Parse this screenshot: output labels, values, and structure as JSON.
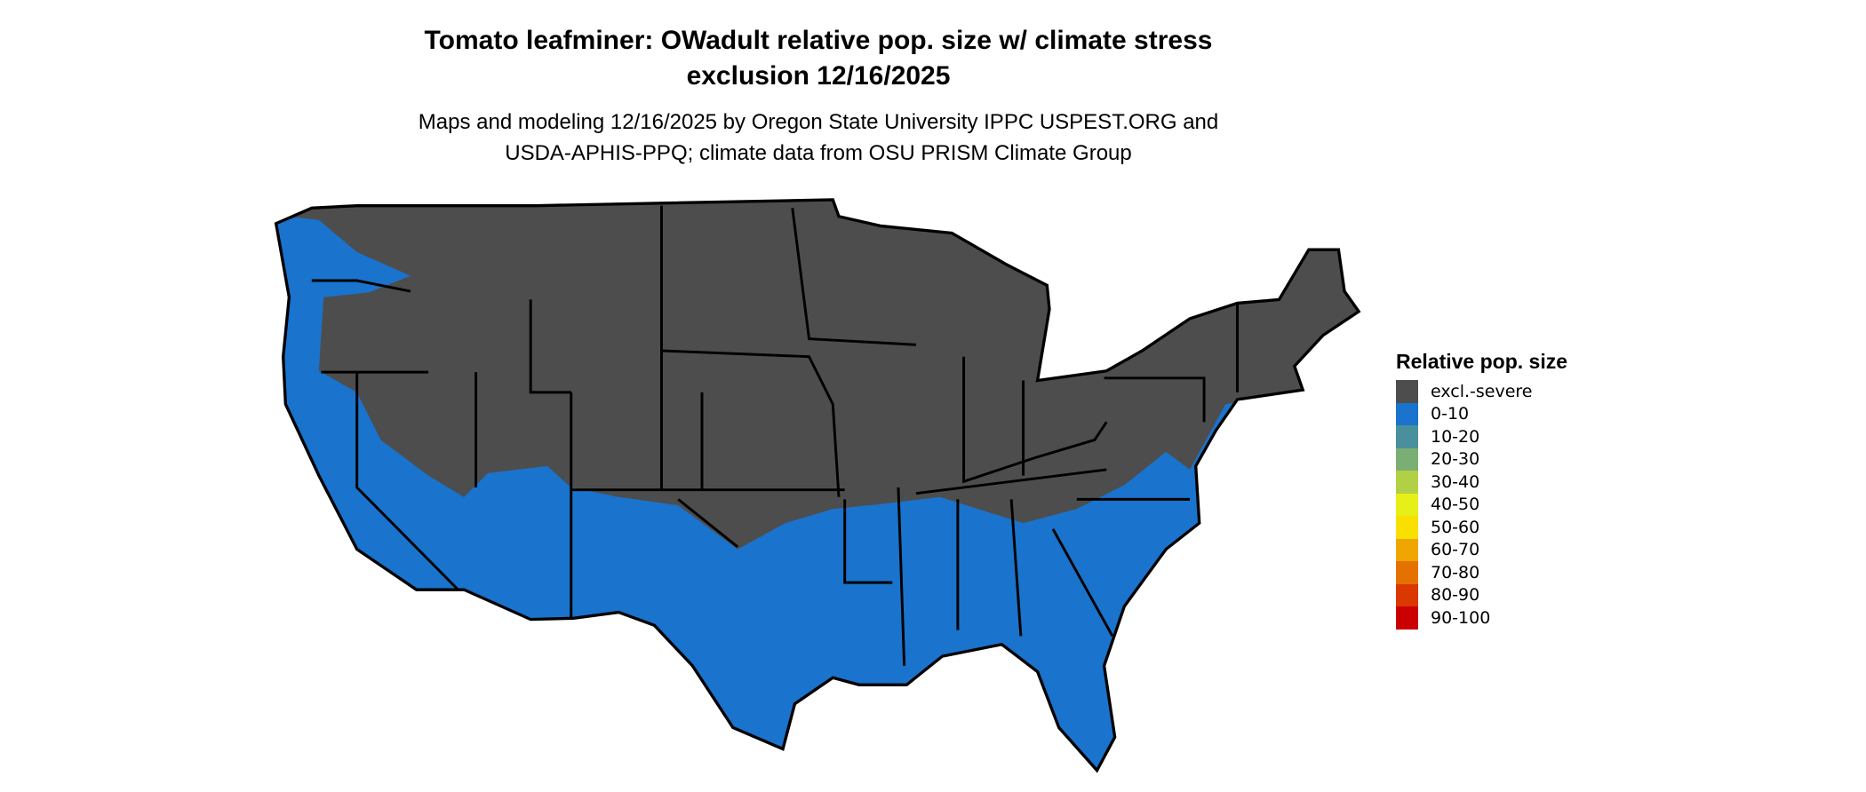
{
  "title_line1": "Tomato leafminer: OWadult relative pop. size w/ climate stress",
  "title_line2": "exclusion 12/16/2025",
  "subtitle_line1": "Maps and modeling 12/16/2025 by Oregon State University IPPC USPEST.ORG and",
  "subtitle_line2": "USDA-APHIS-PPQ; climate data from OSU PRISM Climate Group",
  "map": {
    "region": "Contiguous United States",
    "boundaries": "states"
  },
  "legend": {
    "title": "Relative pop. size",
    "items": [
      {
        "label": "excl.-severe",
        "color": "#4d4d4d"
      },
      {
        "label": "0-10",
        "color": "#1a73cc"
      },
      {
        "label": "10-20",
        "color": "#4a8f9c"
      },
      {
        "label": "20-30",
        "color": "#7bae72"
      },
      {
        "label": "30-40",
        "color": "#b2d046"
      },
      {
        "label": "40-50",
        "color": "#e6ef17"
      },
      {
        "label": "50-60",
        "color": "#f9e000"
      },
      {
        "label": "60-70",
        "color": "#efa600"
      },
      {
        "label": "70-80",
        "color": "#e57200"
      },
      {
        "label": "80-90",
        "color": "#db3700"
      },
      {
        "label": "90-100",
        "color": "#cc0000"
      }
    ]
  }
}
